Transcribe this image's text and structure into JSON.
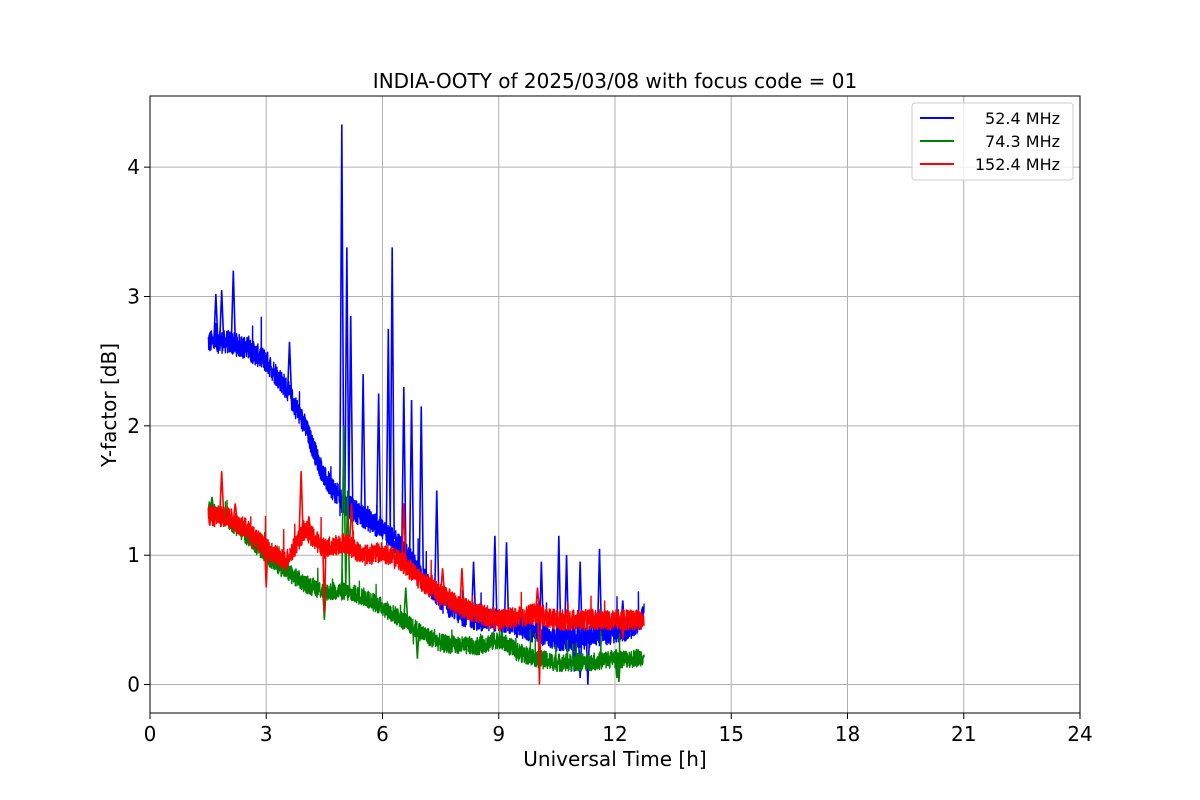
{
  "chart_data": {
    "type": "line",
    "title": "INDIA-OOTY of 2025/03/08 with focus code = 01",
    "xlabel": "Universal Time [h]",
    "ylabel": "Y-factor [dB]",
    "xlim": [
      0,
      24
    ],
    "ylim": [
      -0.22,
      4.55
    ],
    "xticks": [
      0,
      3,
      6,
      9,
      12,
      15,
      18,
      21,
      24
    ],
    "yticks": [
      0,
      1,
      2,
      3,
      4
    ],
    "grid": true,
    "legend_position": "top-right",
    "x": [
      1.5,
      2.0,
      2.5,
      3.0,
      3.5,
      4.0,
      4.5,
      5.0,
      5.5,
      6.0,
      6.5,
      7.0,
      7.5,
      8.0,
      8.5,
      9.0,
      9.5,
      10.0,
      10.5,
      11.0,
      11.5,
      12.0,
      12.5,
      12.75
    ],
    "series": [
      {
        "name": "52.4 MHz",
        "color": "#0000ff",
        "values": [
          2.65,
          2.65,
          2.6,
          2.5,
          2.3,
          2.0,
          1.6,
          1.4,
          1.3,
          1.2,
          1.05,
          0.85,
          0.65,
          0.55,
          0.5,
          0.5,
          0.45,
          0.4,
          0.35,
          0.35,
          0.38,
          0.4,
          0.45,
          0.55
        ],
        "spikes": [
          [
            1.7,
            3.02
          ],
          [
            1.85,
            3.05
          ],
          [
            2.15,
            3.2
          ],
          [
            3.6,
            2.65
          ],
          [
            4.95,
            4.33
          ],
          [
            5.08,
            3.38
          ],
          [
            5.18,
            2.85
          ],
          [
            5.5,
            2.4
          ],
          [
            5.9,
            2.25
          ],
          [
            6.15,
            2.75
          ],
          [
            6.25,
            3.38
          ],
          [
            6.55,
            2.3
          ],
          [
            6.75,
            2.2
          ],
          [
            7.0,
            2.15
          ],
          [
            7.4,
            1.5
          ],
          [
            8.35,
            0.95
          ],
          [
            8.9,
            1.15
          ],
          [
            9.2,
            1.1
          ],
          [
            10.1,
            0.95
          ],
          [
            10.55,
            1.15
          ],
          [
            10.75,
            1.0
          ],
          [
            11.1,
            0.95
          ],
          [
            11.6,
            1.05
          ],
          [
            12.2,
            0.65
          ]
        ],
        "dips": [
          [
            11.1,
            0.05
          ],
          [
            11.3,
            0.0
          ],
          [
            10.95,
            0.1
          ]
        ]
      },
      {
        "name": "74.3 MHz",
        "color": "#008000",
        "values": [
          1.35,
          1.28,
          1.15,
          1.0,
          0.88,
          0.78,
          0.72,
          0.72,
          0.68,
          0.6,
          0.5,
          0.4,
          0.32,
          0.3,
          0.3,
          0.35,
          0.25,
          0.2,
          0.17,
          0.17,
          0.18,
          0.2,
          0.2,
          0.22
        ],
        "spikes": [
          [
            1.6,
            1.45
          ],
          [
            5.0,
            2.0
          ],
          [
            5.1,
            1.5
          ],
          [
            6.6,
            0.75
          ]
        ],
        "dips": [
          [
            4.5,
            0.5
          ],
          [
            6.9,
            0.2
          ],
          [
            12.05,
            0.05
          ],
          [
            12.1,
            0.02
          ]
        ]
      },
      {
        "name": "152.4 MHz",
        "color": "#ff0000",
        "values": [
          1.3,
          1.3,
          1.2,
          1.05,
          0.95,
          1.2,
          1.05,
          1.1,
          1.0,
          1.02,
          0.95,
          0.8,
          0.7,
          0.6,
          0.55,
          0.5,
          0.52,
          0.55,
          0.5,
          0.5,
          0.5,
          0.5,
          0.5,
          0.5
        ],
        "spikes": [
          [
            1.85,
            1.65
          ],
          [
            2.2,
            1.4
          ],
          [
            3.9,
            1.65
          ],
          [
            4.1,
            1.3
          ],
          [
            5.2,
            1.4
          ],
          [
            6.55,
            1.4
          ],
          [
            7.55,
            0.9
          ],
          [
            8.05,
            0.9
          ],
          [
            10.0,
            0.75
          ]
        ],
        "dips": [
          [
            3.0,
            0.75
          ],
          [
            4.5,
            0.55
          ],
          [
            10.05,
            0.0
          ],
          [
            12.2,
            0.35
          ]
        ]
      }
    ]
  }
}
